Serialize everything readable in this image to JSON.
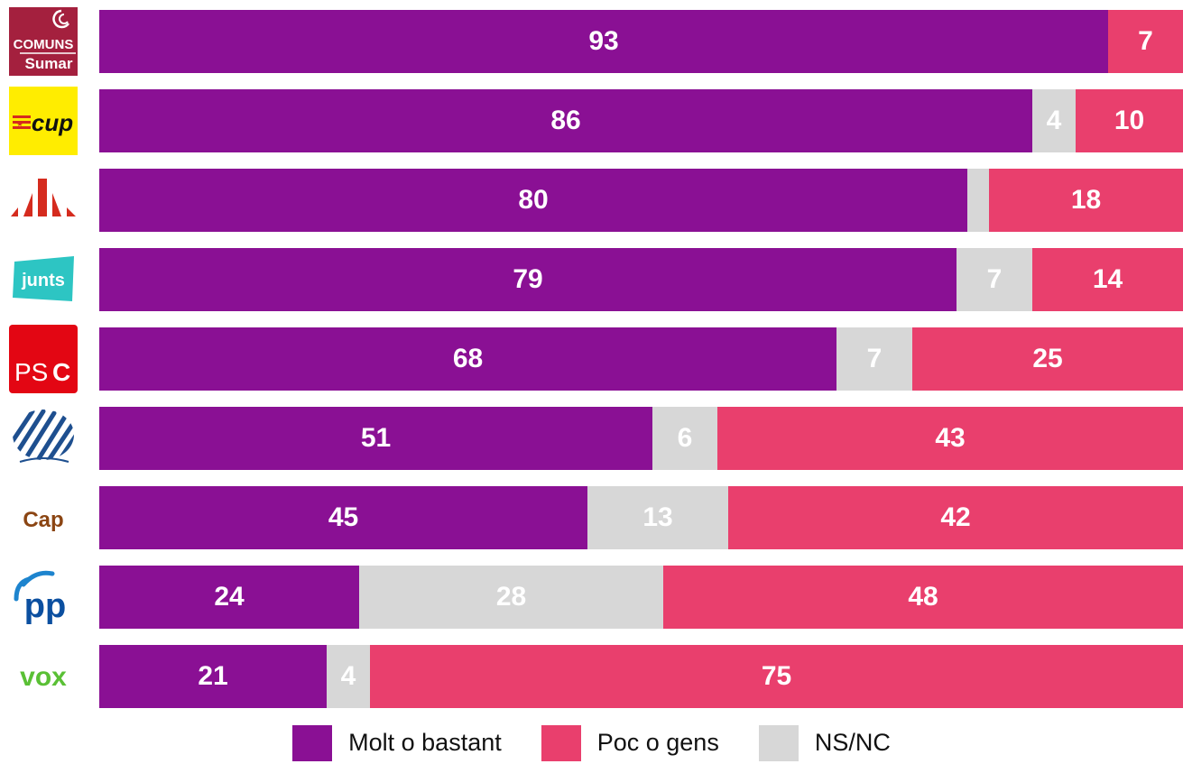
{
  "colors": {
    "molt": "#8a1094",
    "poc": "#e93f6d",
    "nsnc": "#d7d7d7"
  },
  "chart_data": {
    "type": "bar",
    "orientation": "horizontal",
    "stacked": true,
    "normalized_to": 100,
    "title": "",
    "xlabel": "",
    "ylabel": "",
    "xlim": [
      0,
      100
    ],
    "grid": false,
    "legend_position": "bottom",
    "categories": [
      {
        "id": "comuns-sumar",
        "logo_text": "COMUNS Sumar",
        "logo_lines": [
          "COMUNS",
          "Sumar"
        ]
      },
      {
        "id": "cup",
        "logo_text": "cup"
      },
      {
        "id": "erc",
        "logo_text": ""
      },
      {
        "id": "junts",
        "logo_text": "junts"
      },
      {
        "id": "psc",
        "logo_text": "PSC"
      },
      {
        "id": "cs",
        "logo_text": ""
      },
      {
        "id": "cap",
        "logo_text": "Cap"
      },
      {
        "id": "pp",
        "logo_text": "pp"
      },
      {
        "id": "vox",
        "logo_text": "vox"
      }
    ],
    "series": [
      {
        "name": "Molt o bastant",
        "key": "molt",
        "values": [
          93,
          86,
          80,
          79,
          68,
          51,
          45,
          24,
          21
        ]
      },
      {
        "name": "NS/NC",
        "key": "nsnc",
        "values": [
          0,
          4,
          2,
          7,
          7,
          6,
          13,
          28,
          4
        ]
      },
      {
        "name": "Poc o gens",
        "key": "poc",
        "values": [
          7,
          10,
          18,
          14,
          25,
          43,
          42,
          48,
          75
        ]
      }
    ],
    "data_labels": [
      [
        "93",
        "",
        "7"
      ],
      [
        "86",
        "4",
        "10"
      ],
      [
        "80",
        "",
        "18"
      ],
      [
        "79",
        "7",
        "14"
      ],
      [
        "68",
        "7",
        "25"
      ],
      [
        "51",
        "6",
        "43"
      ],
      [
        "45",
        "13",
        "42"
      ],
      [
        "24",
        "28",
        "48"
      ],
      [
        "21",
        "4",
        "75"
      ]
    ]
  },
  "legend": [
    {
      "label": "Molt o bastant",
      "key": "molt"
    },
    {
      "label": "Poc o gens",
      "key": "poc"
    },
    {
      "label": "NS/NC",
      "key": "nsnc"
    }
  ]
}
